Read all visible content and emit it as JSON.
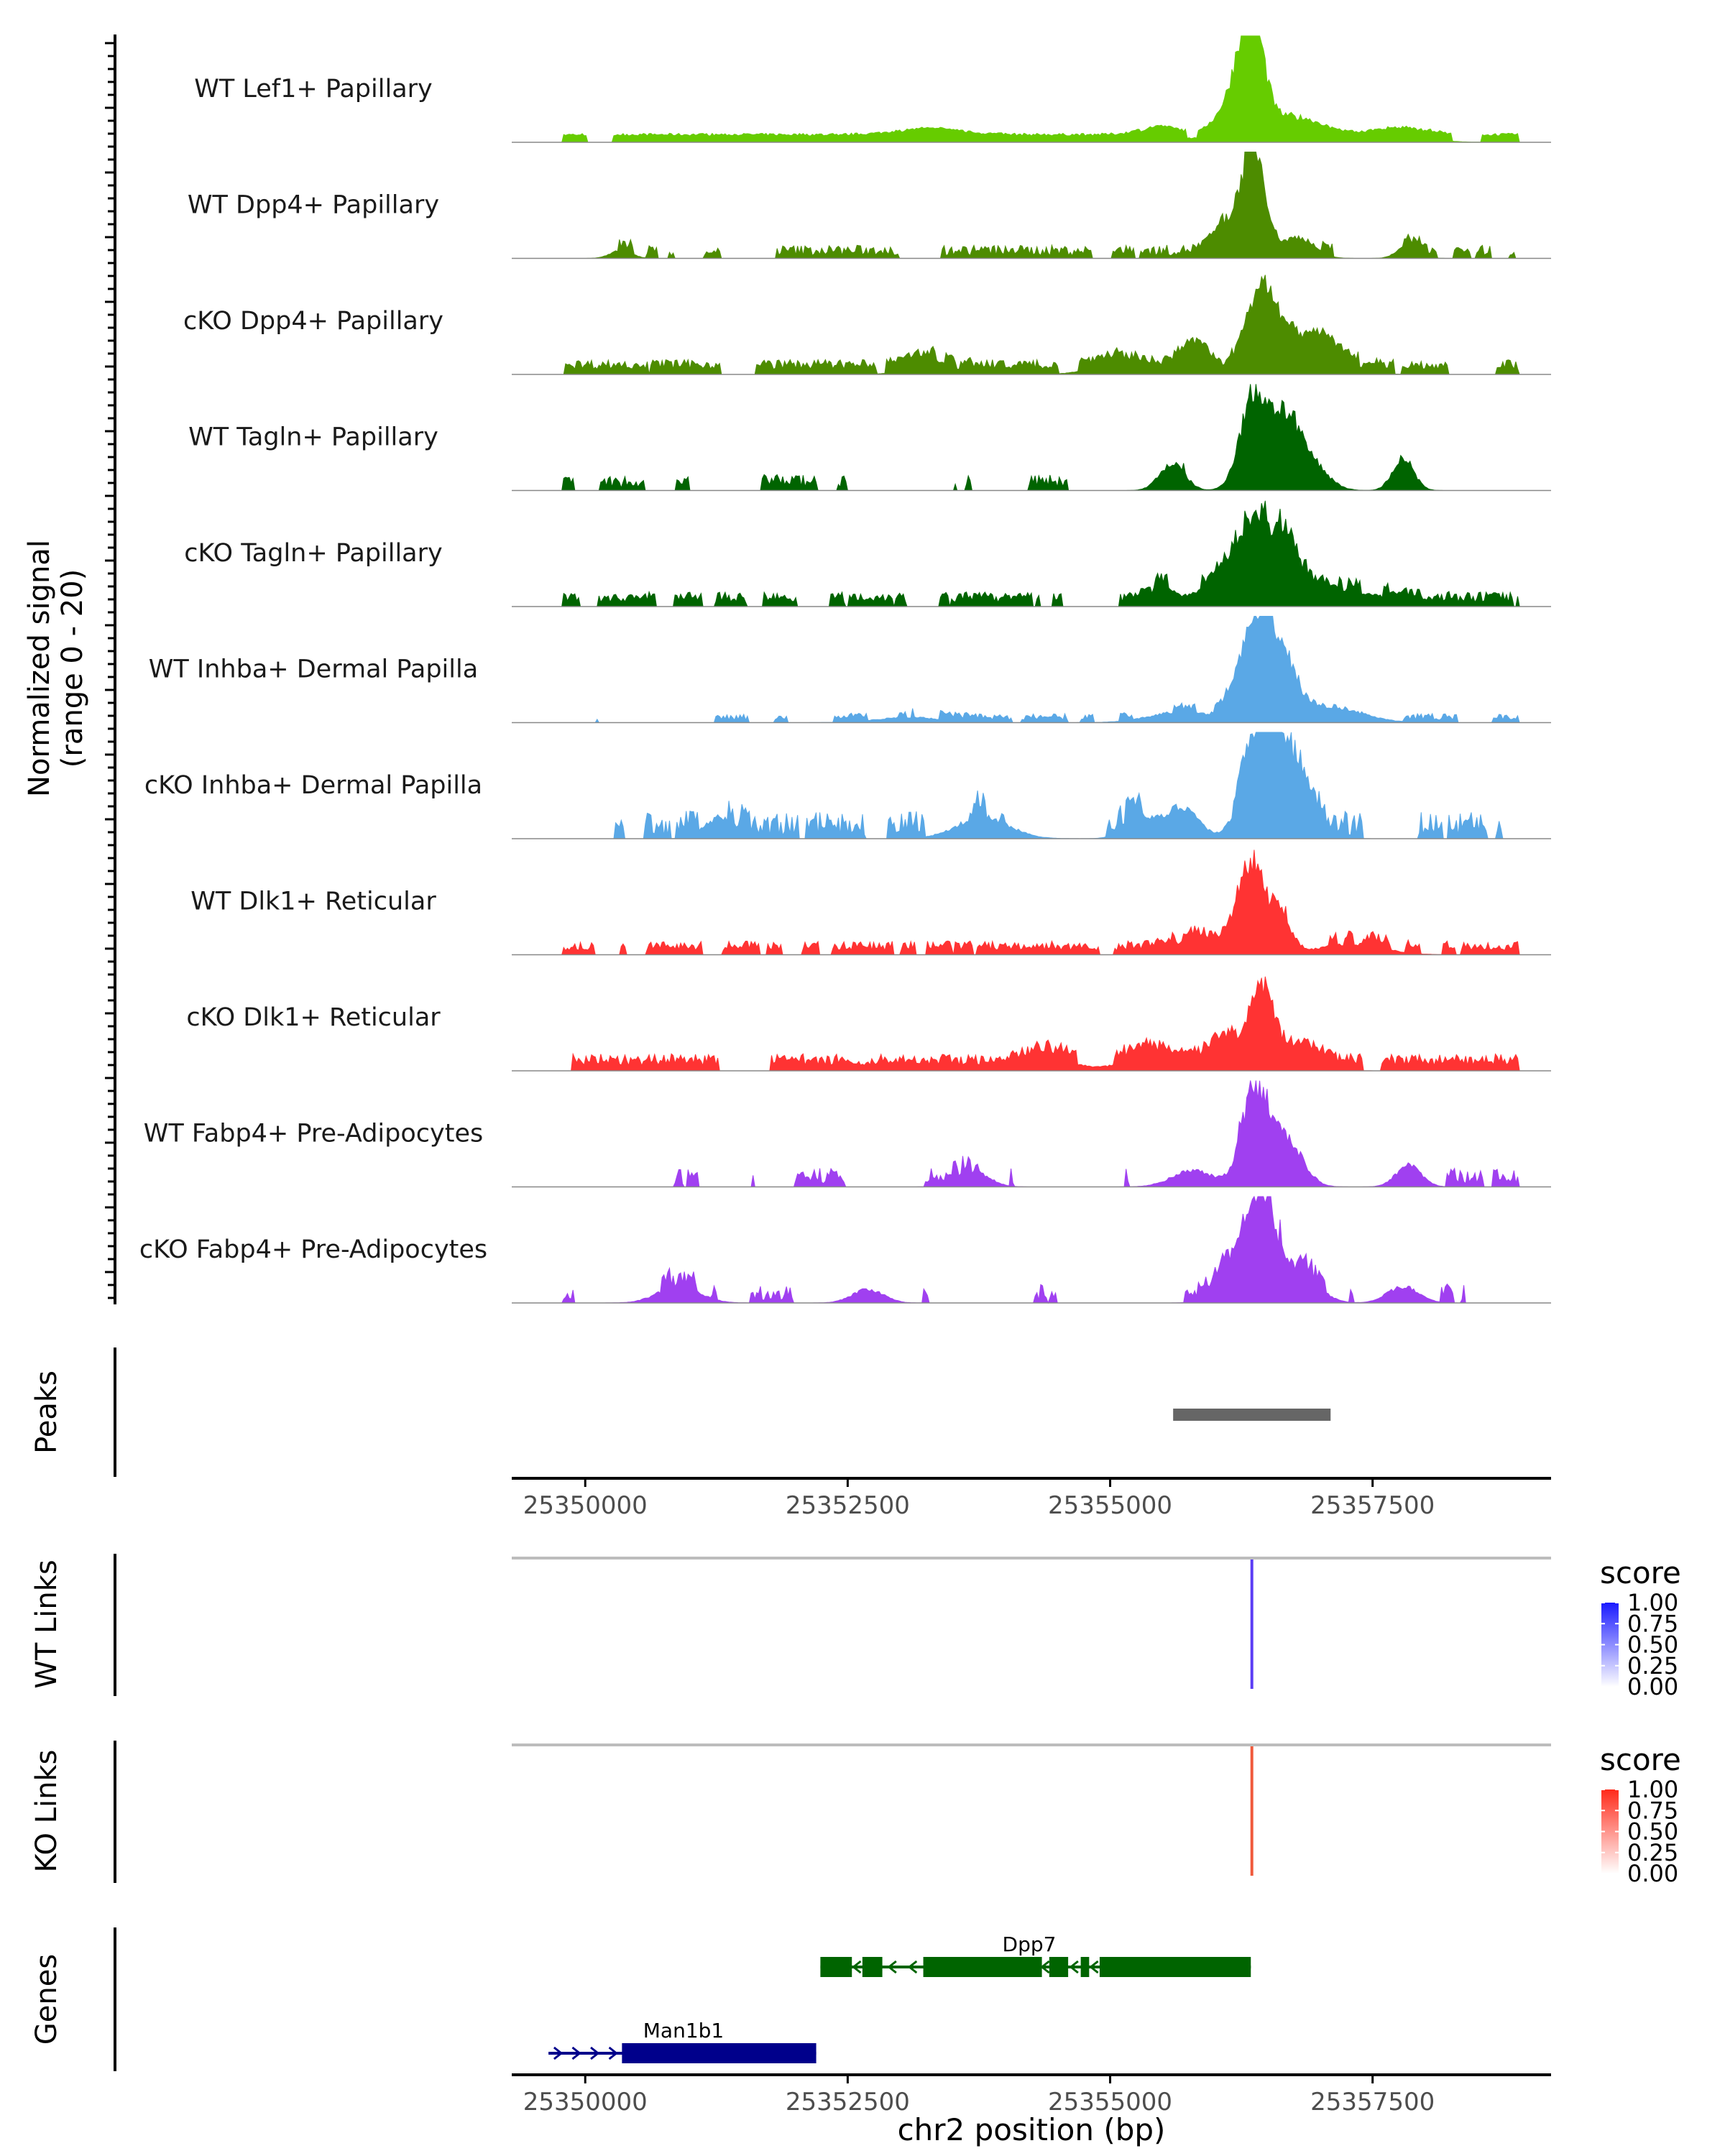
{
  "chart_data": {
    "type": "area",
    "title": "",
    "chromosome": "chr2",
    "xlabel": "chr2 position (bp)",
    "xlim": [
      25349300,
      25359200
    ],
    "x_ticks": [
      25350000,
      25352500,
      25355000,
      25357500
    ],
    "x_tick_labels": [
      "25350000",
      "25352500",
      "25355000",
      "25357500"
    ],
    "signal_ylabel_line1": "Normalized signal",
    "signal_ylabel_line2": "(range 0 - 20)",
    "ylim": [
      0,
      20
    ],
    "tracks": [
      {
        "name": "WT Lef1+ Papillary",
        "color": "#66cc00",
        "baseline": 1.2,
        "noise": 0.5,
        "density": 0.95,
        "peaks": [
          [
            25356350,
            19.5,
            110
          ],
          [
            25356200,
            6,
            160
          ],
          [
            25356700,
            3.5,
            300
          ],
          [
            25355500,
            1.5,
            200
          ],
          [
            25353300,
            1.2,
            300
          ],
          [
            25357800,
            1.3,
            250
          ]
        ]
      },
      {
        "name": "WT Dpp4+ Papillary",
        "color": "#4d8c00",
        "baseline": 0.5,
        "noise": 2.0,
        "density": 0.38,
        "peaks": [
          [
            25356380,
            20,
            110
          ],
          [
            25356150,
            6,
            150
          ],
          [
            25356800,
            4,
            150
          ],
          [
            25357850,
            2.5,
            100
          ],
          [
            25350350,
            1.5,
            100
          ]
        ]
      },
      {
        "name": "cKO Dpp4+ Papillary",
        "color": "#4d8c00",
        "baseline": 1.0,
        "noise": 1.8,
        "density": 0.8,
        "peaks": [
          [
            25356450,
            14,
            140
          ],
          [
            25355800,
            5,
            120
          ],
          [
            25356900,
            6,
            280
          ],
          [
            25353300,
            2.5,
            200
          ],
          [
            25355100,
            2,
            250
          ]
        ]
      },
      {
        "name": "WT Tagln+ Papillary",
        "color": "#006400",
        "baseline": 0.5,
        "noise": 2.5,
        "density": 0.3,
        "peaks": [
          [
            25356380,
            18,
            130
          ],
          [
            25356700,
            11,
            140
          ],
          [
            25357800,
            6,
            100
          ],
          [
            25355600,
            5,
            120
          ],
          [
            25356950,
            4,
            150
          ]
        ]
      },
      {
        "name": "cKO Tagln+ Papillary",
        "color": "#006400",
        "baseline": 0.8,
        "noise": 2.0,
        "density": 0.6,
        "peaks": [
          [
            25356350,
            13,
            150
          ],
          [
            25356650,
            11,
            150
          ],
          [
            25355500,
            4,
            110
          ],
          [
            25356000,
            4,
            200
          ],
          [
            25357200,
            3,
            400
          ]
        ]
      },
      {
        "name": "WT Inhba+ Dermal Papilla",
        "color": "#5aa8e6",
        "baseline": 0.5,
        "noise": 1.2,
        "density": 0.35,
        "peaks": [
          [
            25356400,
            17,
            160
          ],
          [
            25356650,
            8,
            150
          ],
          [
            25357100,
            3,
            300
          ],
          [
            25355700,
            2,
            300
          ],
          [
            25353100,
            1,
            300
          ]
        ]
      },
      {
        "name": "cKO Inhba+ Dermal Papilla",
        "color": "#5aa8e6",
        "baseline": 0.5,
        "noise": 4.5,
        "density": 0.45,
        "peaks": [
          [
            25356450,
            19,
            160
          ],
          [
            25356700,
            12,
            200
          ],
          [
            25355700,
            6,
            150
          ],
          [
            25355300,
            4,
            150
          ],
          [
            25351300,
            4,
            150
          ],
          [
            25353800,
            4,
            250
          ]
        ]
      },
      {
        "name": "WT Dlk1+ Reticular",
        "color": "#ff3333",
        "baseline": 0.8,
        "noise": 1.8,
        "density": 0.55,
        "peaks": [
          [
            25356350,
            16,
            130
          ],
          [
            25356650,
            6,
            100
          ],
          [
            25355800,
            3,
            200
          ],
          [
            25357300,
            2,
            300
          ]
        ]
      },
      {
        "name": "cKO Dlk1+ Reticular",
        "color": "#ff3333",
        "baseline": 1.0,
        "noise": 2.2,
        "density": 0.85,
        "peaks": [
          [
            25356450,
            14,
            100
          ],
          [
            25356100,
            5,
            150
          ],
          [
            25356800,
            3.5,
            200
          ],
          [
            25355400,
            3,
            250
          ],
          [
            25354400,
            2.5,
            250
          ]
        ]
      },
      {
        "name": "WT Fabp4+ Pre-Adipocytes",
        "color": "#a040f0",
        "baseline": 0.5,
        "noise": 3.0,
        "density": 0.35,
        "peaks": [
          [
            25356400,
            18,
            130
          ],
          [
            25356700,
            8,
            150
          ],
          [
            25357850,
            4,
            120
          ],
          [
            25355800,
            3,
            200
          ],
          [
            25353700,
            3,
            150
          ]
        ]
      },
      {
        "name": "cKO Fabp4+ Pre-Adipocytes",
        "color": "#a040f0",
        "baseline": 0.5,
        "noise": 3.0,
        "density": 0.32,
        "peaks": [
          [
            25356450,
            20,
            130
          ],
          [
            25356150,
            6,
            150
          ],
          [
            25356800,
            6,
            180
          ],
          [
            25357800,
            3,
            150
          ],
          [
            25350900,
            3,
            200
          ],
          [
            25352700,
            2.5,
            150
          ]
        ]
      }
    ],
    "peaks_track": {
      "label": "Peaks",
      "color": "#666666",
      "regions": [
        [
          25355600,
          25357100
        ]
      ]
    },
    "links": [
      {
        "label": "WT Links",
        "color": "#5b3df5",
        "x": 25356350,
        "score": 0.8
      },
      {
        "label": "KO Links",
        "color": "#f05a3c",
        "x": 25356350,
        "score": 0.8
      }
    ],
    "legends": [
      {
        "title": "score",
        "low_color": "#ffffff",
        "high_color": "#1a1aff",
        "tick_labels": [
          "1.00",
          "0.75",
          "0.50",
          "0.25",
          "0.00"
        ]
      },
      {
        "title": "score",
        "low_color": "#ffffff",
        "high_color": "#ff2a1a",
        "tick_labels": [
          "1.00",
          "0.75",
          "0.50",
          "0.25",
          "0.00"
        ]
      }
    ],
    "genes_label": "Genes",
    "genes": [
      {
        "name": "Dpp7",
        "strand": "-",
        "color": "#006400",
        "row": 0,
        "start": 25352240,
        "end": 25356340,
        "exons": [
          [
            25352240,
            25352540
          ],
          [
            25352640,
            25352830
          ],
          [
            25353220,
            25354350
          ],
          [
            25354420,
            25354600
          ],
          [
            25354720,
            25354800
          ],
          [
            25354900,
            25356340
          ]
        ]
      },
      {
        "name": "Man1b1",
        "strand": "+",
        "color": "#00008b",
        "row": 1,
        "start": 25349650,
        "end": 25352200,
        "exons": [
          [
            25350350,
            25352200
          ]
        ]
      }
    ]
  }
}
